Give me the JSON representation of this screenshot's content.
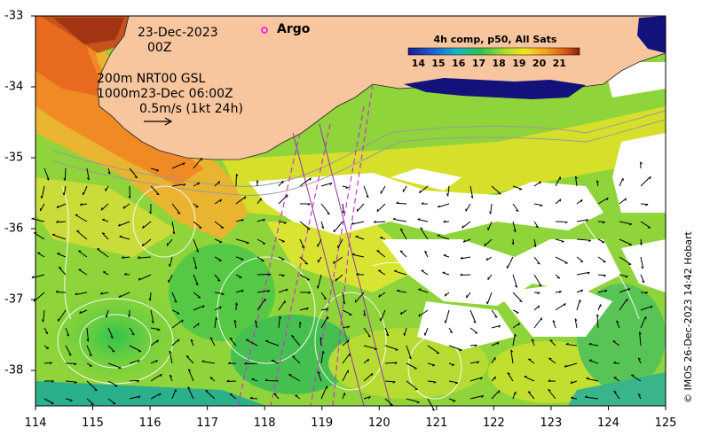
{
  "map": {
    "date_line": "23-Dec-2023",
    "time_line": "00Z",
    "argo_label": "Argo",
    "model_line1": "200m  NRT00 GSL",
    "model_line2": "1000m23-Dec 06:00Z",
    "scale_label": "0.5m/s (1kt 24h)",
    "credit": "© IMOS 26-Dec-2023 14:42 Hobart"
  },
  "colorbar": {
    "title": "4h comp, p50, All Sats",
    "ticks": [
      "14",
      "15",
      "16",
      "17",
      "18",
      "19",
      "20",
      "21"
    ],
    "range": [
      13.5,
      22
    ]
  },
  "axes": {
    "x_ticks": [
      "114",
      "115",
      "116",
      "117",
      "118",
      "119",
      "120",
      "121",
      "122",
      "123",
      "124",
      "125"
    ],
    "y_ticks": [
      "-33",
      "-34",
      "-35",
      "-36",
      "-37",
      "-38"
    ],
    "lon_range": [
      114,
      125
    ],
    "lat_range": [
      -38.5,
      -33
    ]
  },
  "colors": {
    "land": "#f8c69e",
    "no_data": "#ffffff",
    "argo_marker": "#ff00ff",
    "track": "#cc33cc"
  }
}
